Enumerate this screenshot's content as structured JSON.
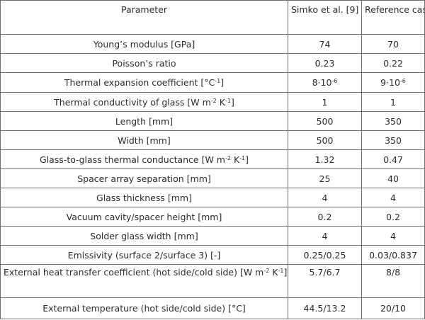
{
  "header": {
    "parameter": "Parameter",
    "simko": "Simko et al. [9]",
    "reference": "Reference case"
  },
  "rows": [
    {
      "param": "Young’s modulus [GPa]",
      "simko": "74",
      "ref": "70"
    },
    {
      "param": "Poisson’s ratio",
      "simko": "0.23",
      "ref": "0.22"
    },
    {
      "param_pre": "Thermal expansion coefficient [°C",
      "param_sup": "-1",
      "param_post": "]",
      "simko_base": "8·10",
      "simko_sup": "-6",
      "ref_base": "9·10",
      "ref_sup": "-6"
    },
    {
      "param_pre": "Thermal conductivity of glass [W m",
      "param_sup": "-2",
      "param_mid": " K",
      "param_sup2": "-1",
      "param_post": "]",
      "simko": "1",
      "ref": "1"
    },
    {
      "param": "Length [mm]",
      "simko": "500",
      "ref": "350"
    },
    {
      "param": "Width [mm]",
      "simko": "500",
      "ref": "350"
    },
    {
      "param_pre": "Glass-to-glass thermal conductance [W m",
      "param_sup": "-2",
      "param_mid": " K",
      "param_sup2": "-1",
      "param_post": "]",
      "simko": "1.32",
      "ref": "0.47"
    },
    {
      "param": "Spacer array separation [mm]",
      "simko": "25",
      "ref": "40"
    },
    {
      "param": "Glass thickness [mm]",
      "simko": "4",
      "ref": "4"
    },
    {
      "param": "Vacuum cavity/spacer height [mm]",
      "simko": "0.2",
      "ref": "0.2"
    },
    {
      "param": "Solder glass width [mm]",
      "simko": "4",
      "ref": "4"
    },
    {
      "param": "Emissivity (surface 2/surface 3) [-]",
      "simko": "0.25/0.25",
      "ref": "0.03/0.837"
    },
    {
      "param_pre": "External heat transfer coefficient (hot side/cold side) [W m",
      "param_sup": "-2",
      "param_mid": " K",
      "param_sup2": "-1",
      "param_post": "]",
      "simko": "5.7/6.7",
      "ref": "8/8"
    },
    {
      "param": "External temperature (hot side/cold side) [°C]",
      "simko": "44.5/13.2",
      "ref": "20/10"
    }
  ]
}
